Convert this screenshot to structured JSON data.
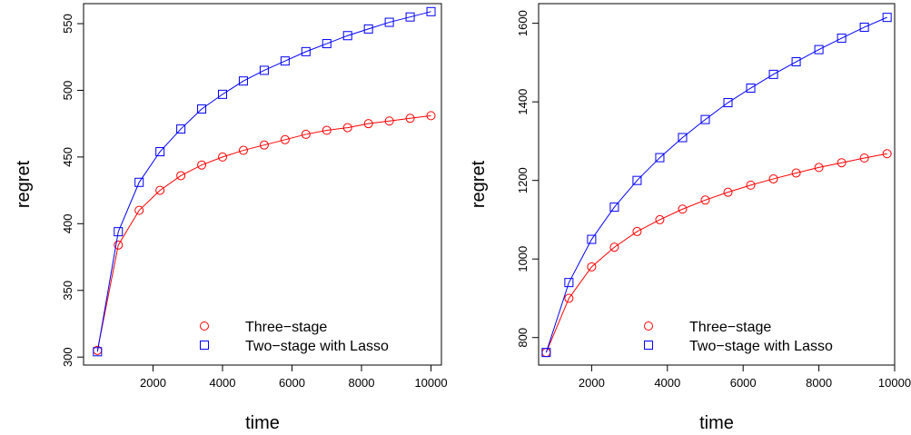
{
  "chart_data": [
    {
      "type": "line",
      "xlabel": "time",
      "ylabel": "regret",
      "xlim": [
        0,
        10300
      ],
      "ylim": [
        294,
        565
      ],
      "xticks": [
        2000,
        4000,
        6000,
        8000,
        10000
      ],
      "yticks": [
        300,
        350,
        400,
        450,
        500,
        550
      ],
      "legend_position": "bottom-right",
      "series": [
        {
          "name": "Three−stage",
          "color": "#ff0000",
          "marker": "circle",
          "x": [
            400,
            1000,
            1600,
            2200,
            2800,
            3400,
            4000,
            4600,
            5200,
            5800,
            6400,
            7000,
            7600,
            8200,
            8800,
            9400,
            10000
          ],
          "y": [
            305,
            384,
            410,
            425,
            436,
            444,
            450,
            455,
            459,
            463,
            467,
            470,
            472,
            475,
            477,
            479,
            481
          ]
        },
        {
          "name": "Two−stage with Lasso",
          "color": "#0000ff",
          "marker": "square",
          "x": [
            400,
            1000,
            1600,
            2200,
            2800,
            3400,
            4000,
            4600,
            5200,
            5800,
            6400,
            7000,
            7600,
            8200,
            8800,
            9400,
            10000
          ],
          "y": [
            304,
            394,
            431,
            454,
            471,
            486,
            497,
            507,
            515,
            522,
            529,
            535,
            541,
            546,
            551,
            555,
            559
          ]
        }
      ]
    },
    {
      "type": "line",
      "xlabel": "time",
      "ylabel": "regret",
      "xlim": [
        600,
        10000
      ],
      "ylim": [
        730,
        1650
      ],
      "xticks": [
        2000,
        4000,
        6000,
        8000,
        10000
      ],
      "yticks": [
        800,
        1000,
        1200,
        1400,
        1600
      ],
      "legend_position": "bottom-right",
      "series": [
        {
          "name": "Three−stage",
          "color": "#ff0000",
          "marker": "circle",
          "x": [
            800,
            1400,
            2000,
            2600,
            3200,
            3800,
            4400,
            5000,
            5600,
            6200,
            6800,
            7400,
            8000,
            8600,
            9200,
            9800
          ],
          "y": [
            762,
            900,
            980,
            1030,
            1070,
            1100,
            1127,
            1150,
            1170,
            1188,
            1204,
            1219,
            1233,
            1245,
            1257,
            1268
          ]
        },
        {
          "name": "Two−stage with Lasso",
          "color": "#0000ff",
          "marker": "square",
          "x": [
            800,
            1400,
            2000,
            2600,
            3200,
            3800,
            4400,
            5000,
            5600,
            6200,
            6800,
            7400,
            8000,
            8600,
            9200,
            9800
          ],
          "y": [
            762,
            940,
            1050,
            1132,
            1200,
            1258,
            1309,
            1355,
            1398,
            1435,
            1470,
            1502,
            1533,
            1562,
            1590,
            1615
          ]
        }
      ]
    }
  ]
}
